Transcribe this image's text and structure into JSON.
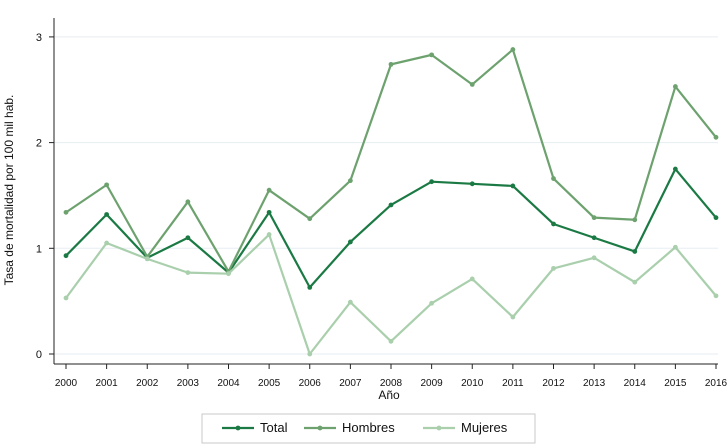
{
  "chart_data": {
    "type": "line",
    "title": "",
    "xlabel": "Año",
    "ylabel": "Tasa de mortalidad por 100 mil hab.",
    "x": [
      "2000",
      "2001",
      "2002",
      "2003",
      "2004",
      "2005",
      "2006",
      "2007",
      "2008",
      "2009",
      "2010",
      "2011",
      "2012",
      "2013",
      "2014",
      "2015",
      "2016"
    ],
    "yticks": [
      "0",
      "1",
      "2",
      "3"
    ],
    "ylim": [
      0,
      3
    ],
    "grid": true,
    "legend_position": "bottom",
    "series": [
      {
        "name": "Total",
        "color": "#1b7a44",
        "values": [
          0.93,
          1.32,
          0.91,
          1.1,
          0.77,
          1.34,
          0.63,
          1.06,
          1.41,
          1.63,
          1.61,
          1.59,
          1.23,
          1.1,
          0.97,
          1.75,
          1.29
        ]
      },
      {
        "name": "Hombres",
        "color": "#6da26f",
        "values": [
          1.34,
          1.6,
          0.92,
          1.44,
          0.78,
          1.55,
          1.28,
          1.64,
          2.74,
          2.83,
          2.55,
          2.88,
          1.66,
          1.29,
          1.27,
          2.53,
          2.05
        ]
      },
      {
        "name": "Mujeres",
        "color": "#a9cfac",
        "values": [
          0.53,
          1.05,
          0.9,
          0.77,
          0.76,
          1.13,
          0.0,
          0.49,
          0.12,
          0.48,
          0.71,
          0.35,
          0.81,
          0.91,
          0.68,
          1.01,
          0.55
        ]
      }
    ]
  }
}
